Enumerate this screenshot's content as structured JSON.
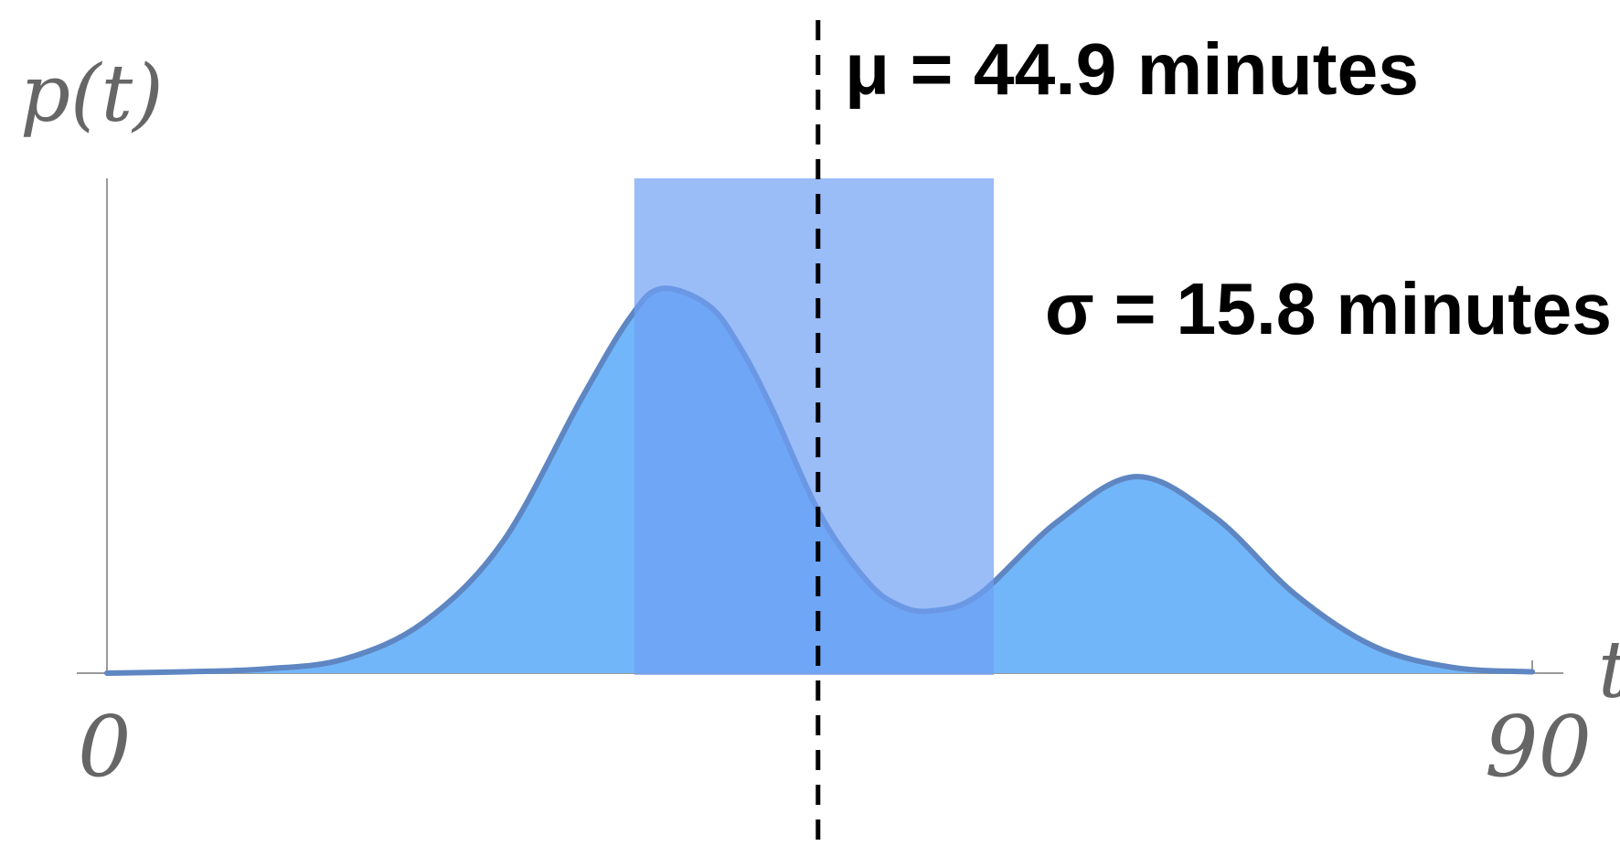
{
  "chart_data": {
    "type": "area",
    "ylabel": "p(t)",
    "xlabel": "t",
    "x_tick_labels": [
      "0",
      "90"
    ],
    "xlim": [
      0,
      90
    ],
    "ylim": [
      0,
      0.035
    ],
    "x": [
      0,
      5,
      10,
      15,
      20,
      25,
      30,
      33,
      35,
      38,
      40,
      42,
      45,
      48,
      50,
      52,
      55,
      60,
      65,
      70,
      75,
      80,
      85,
      90
    ],
    "y": [
      0.0,
      0.0001,
      0.0003,
      0.001,
      0.0036,
      0.0093,
      0.0195,
      0.0251,
      0.0272,
      0.026,
      0.023,
      0.0187,
      0.0113,
      0.0065,
      0.0048,
      0.0044,
      0.0055,
      0.0107,
      0.0139,
      0.011,
      0.0056,
      0.0019,
      0.0004,
      0.0001
    ],
    "mean": 44.9,
    "sd": 15.8,
    "mean_label": "μ = 44.9 minutes",
    "sd_label": "σ = 15.8 minutes",
    "colors": {
      "fill": "#72b6fa",
      "line": "#5e86c2",
      "band": "#6f9ff3",
      "axis": "#9a9a9a",
      "text": "#666666"
    }
  }
}
